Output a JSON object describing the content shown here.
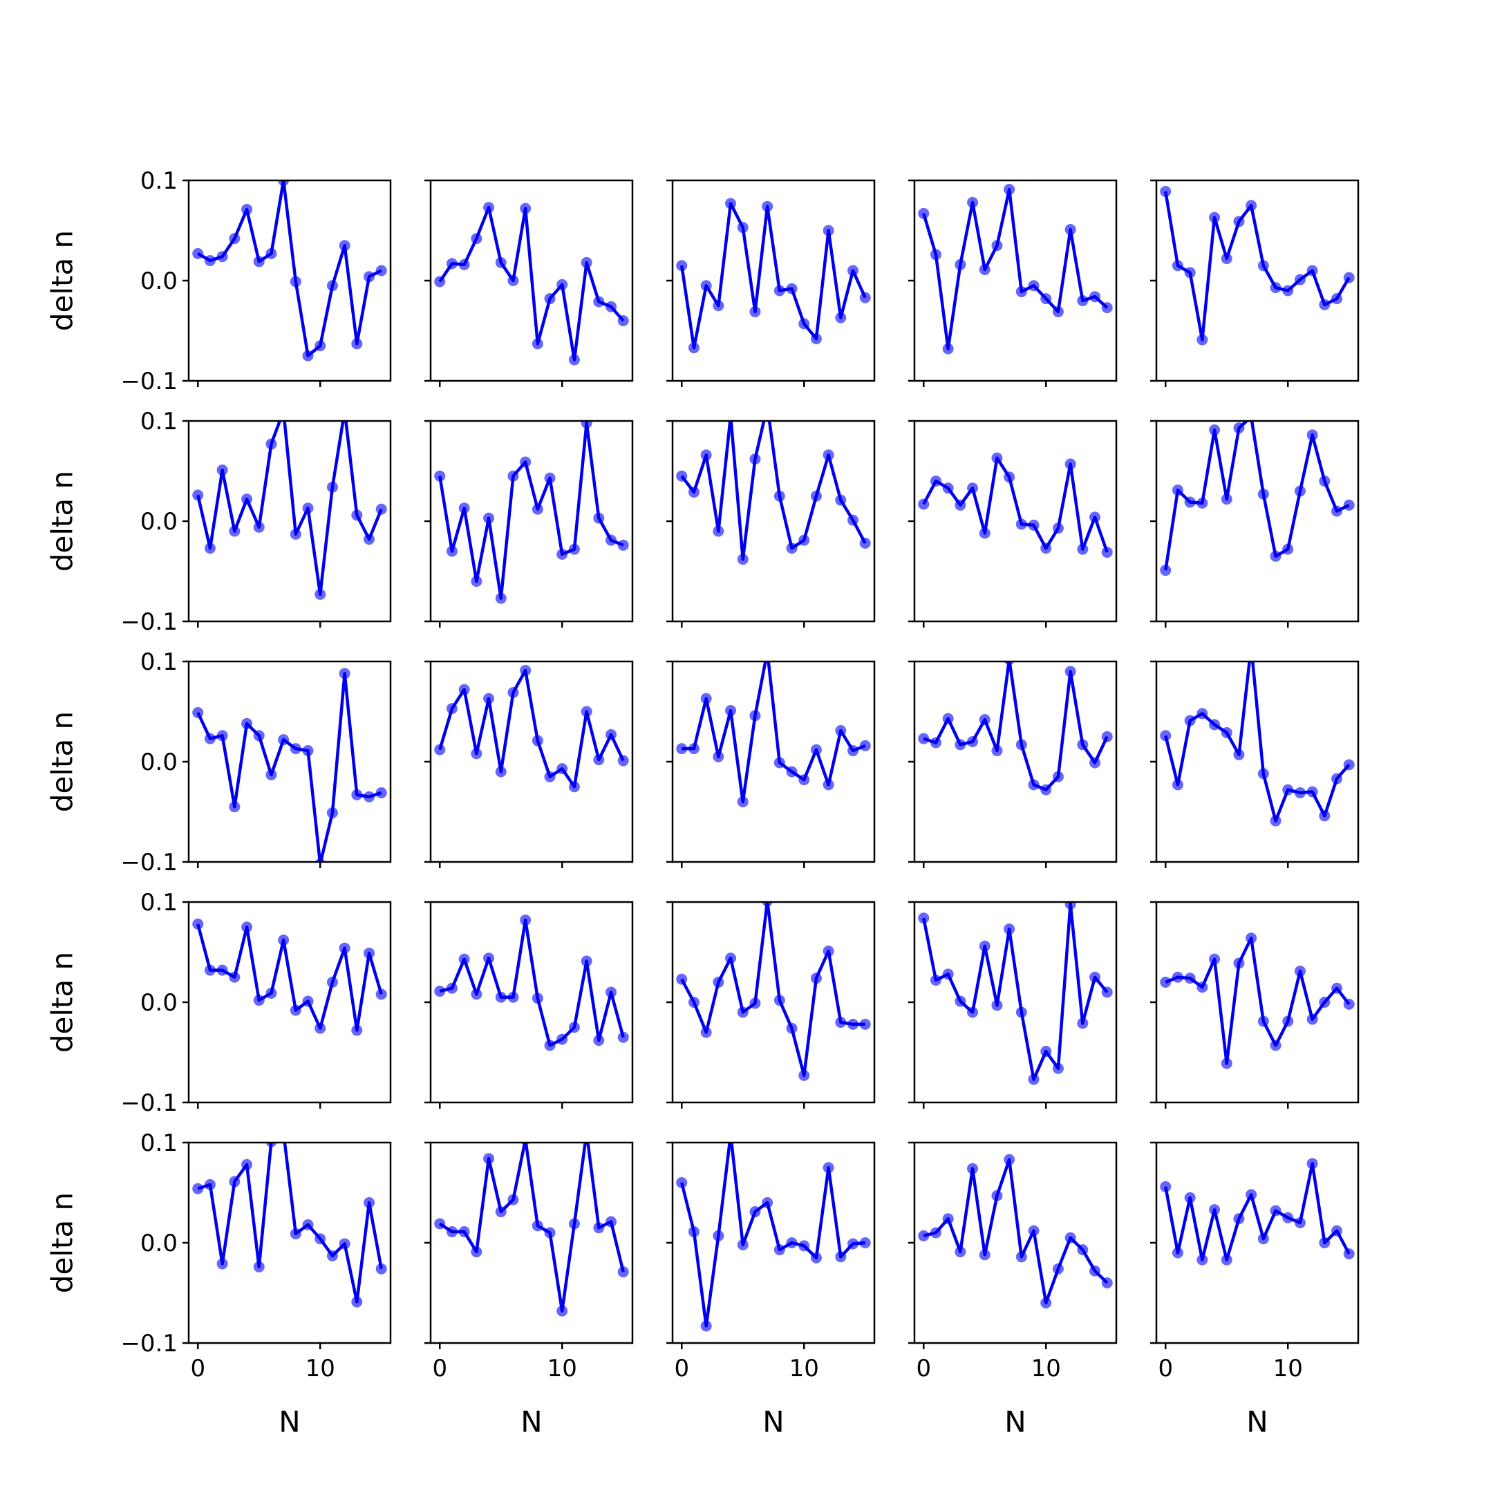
{
  "chart_data": {
    "type": "line",
    "layout": {
      "rows": 5,
      "cols": 5
    },
    "xlabel": "N",
    "ylabel": "delta n",
    "xlim": [
      -0.75,
      15.75
    ],
    "ylim": [
      -0.1,
      0.1
    ],
    "xticks": [
      0,
      10
    ],
    "xtick_labels": [
      "0",
      "10"
    ],
    "yticks": [
      -0.1,
      0.0,
      0.1
    ],
    "ytick_labels": [
      "−0.1",
      "0.0",
      "0.1"
    ],
    "x": [
      0,
      1,
      2,
      3,
      4,
      5,
      6,
      7,
      8,
      9,
      10,
      11,
      12,
      13,
      14,
      15
    ],
    "line_color": "#0000ee",
    "marker_color": "#6666ff",
    "grid": false,
    "panels": [
      {
        "values": [
          0.027,
          0.02,
          0.024,
          0.042,
          0.071,
          0.019,
          0.027,
          0.1,
          -0.001,
          -0.075,
          -0.065,
          -0.005,
          0.035,
          -0.063,
          0.004,
          0.01
        ]
      },
      {
        "values": [
          -0.001,
          0.017,
          0.016,
          0.042,
          0.073,
          0.018,
          0.0,
          0.072,
          -0.063,
          -0.018,
          -0.004,
          -0.079,
          0.018,
          -0.021,
          -0.026,
          -0.04
        ]
      },
      {
        "values": [
          0.015,
          -0.067,
          -0.005,
          -0.025,
          0.077,
          0.053,
          -0.031,
          0.074,
          -0.01,
          -0.008,
          -0.043,
          -0.058,
          0.05,
          -0.037,
          0.01,
          -0.017
        ]
      },
      {
        "values": [
          0.067,
          0.026,
          -0.068,
          0.016,
          0.078,
          0.011,
          0.035,
          0.091,
          -0.011,
          -0.005,
          -0.018,
          -0.031,
          0.051,
          -0.02,
          -0.016,
          -0.027
        ]
      },
      {
        "values": [
          0.089,
          0.015,
          0.008,
          -0.059,
          0.063,
          0.022,
          0.059,
          0.075,
          0.015,
          -0.007,
          -0.01,
          0.001,
          0.01,
          -0.024,
          -0.018,
          0.003
        ]
      },
      {
        "values": [
          0.026,
          -0.027,
          0.051,
          -0.01,
          0.022,
          -0.006,
          0.077,
          0.11,
          -0.013,
          0.013,
          -0.073,
          0.034,
          0.11,
          0.006,
          -0.018,
          0.012
        ]
      },
      {
        "values": [
          0.045,
          -0.03,
          0.013,
          -0.06,
          0.003,
          -0.077,
          0.045,
          0.059,
          0.012,
          0.043,
          -0.033,
          -0.028,
          0.098,
          0.003,
          -0.019,
          -0.024
        ]
      },
      {
        "values": [
          0.045,
          0.029,
          0.066,
          -0.01,
          0.105,
          -0.038,
          0.062,
          0.115,
          0.025,
          -0.027,
          -0.019,
          0.025,
          0.066,
          0.021,
          0.001,
          -0.022
        ]
      },
      {
        "values": [
          0.017,
          0.04,
          0.033,
          0.016,
          0.033,
          -0.012,
          0.063,
          0.044,
          -0.003,
          -0.004,
          -0.027,
          -0.007,
          0.057,
          -0.028,
          0.004,
          -0.031
        ]
      },
      {
        "values": [
          -0.049,
          0.031,
          0.019,
          0.018,
          0.091,
          0.022,
          0.093,
          0.104,
          0.027,
          -0.035,
          -0.028,
          0.03,
          0.086,
          0.04,
          0.01,
          0.016
        ]
      },
      {
        "values": [
          0.049,
          0.023,
          0.026,
          -0.045,
          0.038,
          0.026,
          -0.013,
          0.022,
          0.013,
          0.011,
          -0.102,
          -0.051,
          0.088,
          -0.033,
          -0.035,
          -0.031
        ]
      },
      {
        "values": [
          0.012,
          0.053,
          0.072,
          0.008,
          0.063,
          -0.01,
          0.069,
          0.091,
          0.021,
          -0.015,
          -0.007,
          -0.025,
          0.05,
          0.002,
          0.027,
          0.001
        ]
      },
      {
        "values": [
          0.013,
          0.013,
          0.063,
          0.005,
          0.051,
          -0.04,
          0.046,
          0.11,
          -0.001,
          -0.01,
          -0.018,
          0.012,
          -0.023,
          0.031,
          0.011,
          0.016
        ]
      },
      {
        "values": [
          0.023,
          0.019,
          0.043,
          0.017,
          0.02,
          0.042,
          0.011,
          0.102,
          0.017,
          -0.023,
          -0.028,
          -0.015,
          0.09,
          0.017,
          -0.001,
          0.025
        ]
      },
      {
        "values": [
          0.026,
          -0.023,
          0.041,
          0.048,
          0.037,
          0.029,
          0.007,
          0.115,
          -0.012,
          -0.059,
          -0.028,
          -0.031,
          -0.03,
          -0.054,
          -0.017,
          -0.003
        ]
      },
      {
        "values": [
          0.078,
          0.032,
          0.032,
          0.025,
          0.075,
          0.002,
          0.009,
          0.062,
          -0.008,
          0.001,
          -0.026,
          0.02,
          0.054,
          -0.028,
          0.049,
          0.008
        ]
      },
      {
        "values": [
          0.011,
          0.014,
          0.043,
          0.008,
          0.044,
          0.005,
          0.005,
          0.082,
          0.004,
          -0.043,
          -0.037,
          -0.025,
          0.041,
          -0.038,
          0.01,
          -0.035
        ]
      },
      {
        "values": [
          0.023,
          0.0,
          -0.03,
          0.02,
          0.044,
          -0.01,
          -0.001,
          0.101,
          0.002,
          -0.026,
          -0.073,
          0.024,
          0.051,
          -0.02,
          -0.022,
          -0.022
        ]
      },
      {
        "values": [
          0.084,
          0.022,
          0.028,
          0.001,
          -0.01,
          0.056,
          -0.003,
          0.073,
          -0.01,
          -0.077,
          -0.049,
          -0.066,
          0.098,
          -0.021,
          0.025,
          0.01
        ]
      },
      {
        "values": [
          0.02,
          0.025,
          0.024,
          0.015,
          0.043,
          -0.061,
          0.039,
          0.064,
          -0.019,
          -0.043,
          -0.019,
          0.031,
          -0.017,
          0.0,
          0.014,
          -0.002
        ]
      },
      {
        "values": [
          0.054,
          0.058,
          -0.021,
          0.061,
          0.078,
          -0.024,
          0.101,
          0.11,
          0.009,
          0.018,
          0.004,
          -0.013,
          -0.001,
          -0.059,
          0.04,
          -0.026
        ]
      },
      {
        "values": [
          0.019,
          0.011,
          0.011,
          -0.009,
          0.084,
          0.031,
          0.043,
          0.103,
          0.017,
          0.01,
          -0.068,
          0.019,
          0.11,
          0.015,
          0.021,
          -0.029
        ]
      },
      {
        "values": [
          0.06,
          0.011,
          -0.083,
          0.007,
          0.108,
          -0.002,
          0.031,
          0.04,
          -0.007,
          0.0,
          -0.003,
          -0.015,
          0.075,
          -0.014,
          -0.001,
          0.0
        ]
      },
      {
        "values": [
          0.007,
          0.01,
          0.024,
          -0.009,
          0.074,
          -0.012,
          0.047,
          0.083,
          -0.014,
          0.012,
          -0.06,
          -0.026,
          0.005,
          -0.007,
          -0.028,
          -0.04
        ]
      },
      {
        "values": [
          0.056,
          -0.01,
          0.045,
          -0.017,
          0.033,
          -0.017,
          0.024,
          0.048,
          0.004,
          0.032,
          0.025,
          0.02,
          0.079,
          0.0,
          0.012,
          -0.011
        ]
      }
    ]
  }
}
